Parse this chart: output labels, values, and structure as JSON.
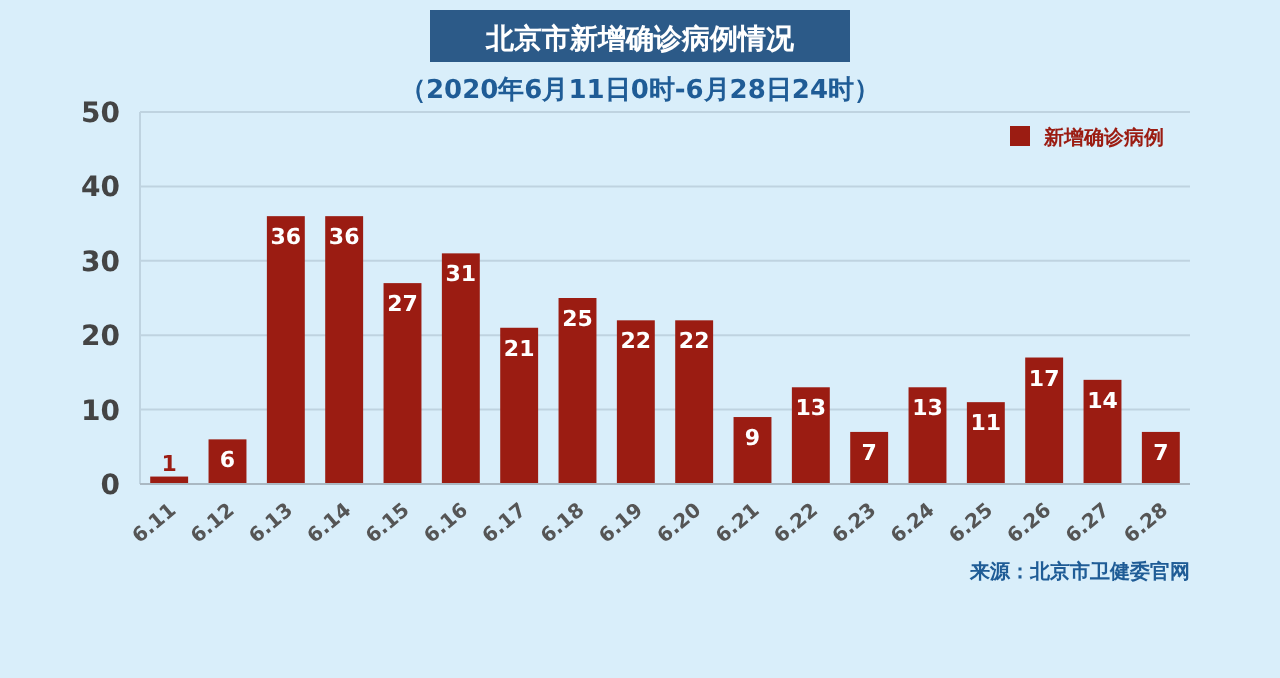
{
  "chart_data": {
    "type": "bar",
    "title": "北京市新增确诊病例情况",
    "subtitle": "（2020年6月11日0时-6月28日24时）",
    "categories": [
      "6.11",
      "6.12",
      "6.13",
      "6.14",
      "6.15",
      "6.16",
      "6.17",
      "6.18",
      "6.19",
      "6.20",
      "6.21",
      "6.22",
      "6.23",
      "6.24",
      "6.25",
      "6.26",
      "6.27",
      "6.28"
    ],
    "series": [
      {
        "name": "新增确诊病例",
        "color": "#9b1c12",
        "values": [
          1,
          6,
          36,
          36,
          27,
          31,
          21,
          25,
          22,
          22,
          9,
          13,
          7,
          13,
          11,
          17,
          14,
          7
        ]
      }
    ],
    "ylim": [
      0,
      50
    ],
    "yticks": [
      0,
      10,
      20,
      30,
      40,
      50
    ],
    "grid": "y",
    "legend": "top right",
    "data_labels": true,
    "annotations": [
      "来源：北京市卫健委官网"
    ]
  }
}
